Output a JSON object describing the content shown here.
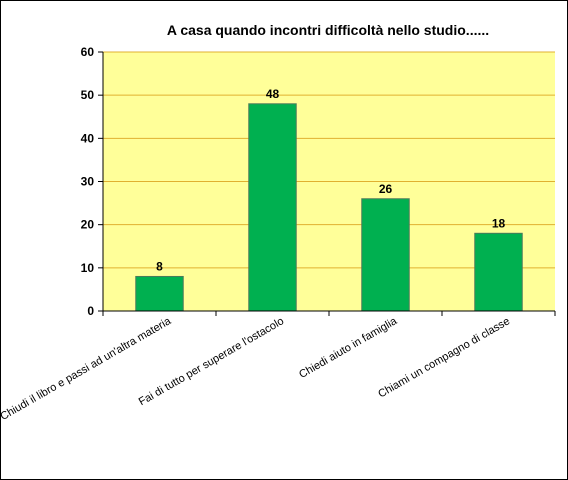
{
  "chart_data": {
    "type": "bar",
    "title": "A casa quando incontri difficoltà nello studio......",
    "categories": [
      "Chiudi il libro e passi ad un'altra materia",
      "Fai di tutto per superare l'ostacolo",
      "Chiedi aiuto in famiglia",
      "Chiami un compagno di classe"
    ],
    "values": [
      8,
      48,
      26,
      18
    ],
    "ylim": [
      0,
      60
    ],
    "yticks": [
      0,
      10,
      20,
      30,
      40,
      50,
      60
    ],
    "grid": true,
    "legend": "none",
    "colors": {
      "bar": "#00B050",
      "bar_edge": "#4a7a5a",
      "plot_background": "#FFFF99",
      "gridline": "#e0b030"
    }
  }
}
